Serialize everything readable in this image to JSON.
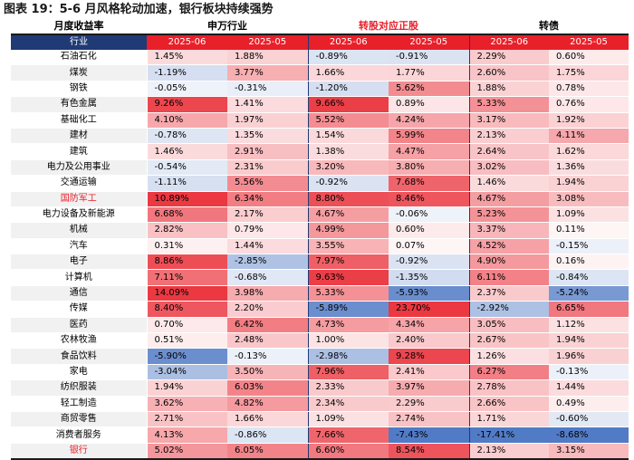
{
  "title": "图表 19：5-6 月风格轮动加速，银行板块持续强势",
  "header": {
    "corner_label": "月度收益率",
    "groups": [
      "申万行业",
      "转股对应正股",
      "转债"
    ],
    "sub_corner": "行业",
    "sub_labels": [
      "2025-06",
      "2025-05",
      "2025-06",
      "2025-05",
      "2025-06",
      "2025-05"
    ]
  },
  "rows": [
    {
      "name": "石油石化",
      "v": [
        "1.45%",
        "1.88%",
        "-0.89%",
        "-0.91%",
        "2.29%",
        "0.60%"
      ],
      "n": [
        1.45,
        1.88,
        -0.89,
        -0.91,
        2.29,
        0.6
      ],
      "hl": false
    },
    {
      "name": "煤炭",
      "v": [
        "-1.19%",
        "3.77%",
        "1.66%",
        "1.77%",
        "2.60%",
        "1.75%"
      ],
      "n": [
        -1.19,
        3.77,
        1.66,
        1.77,
        2.6,
        1.75
      ],
      "hl": false
    },
    {
      "name": "钢铁",
      "v": [
        "-0.05%",
        "-0.31%",
        "-1.20%",
        "5.62%",
        "1.88%",
        "0.78%"
      ],
      "n": [
        -0.05,
        -0.31,
        -1.2,
        5.62,
        1.88,
        0.78
      ],
      "hl": false
    },
    {
      "name": "有色金属",
      "v": [
        "9.26%",
        "1.41%",
        "9.66%",
        "0.89%",
        "5.33%",
        "0.76%"
      ],
      "n": [
        9.26,
        1.41,
        9.66,
        0.89,
        5.33,
        0.76
      ],
      "hl": false
    },
    {
      "name": "基础化工",
      "v": [
        "4.10%",
        "1.97%",
        "5.52%",
        "4.24%",
        "3.17%",
        "1.92%"
      ],
      "n": [
        4.1,
        1.97,
        5.52,
        4.24,
        3.17,
        1.92
      ],
      "hl": false
    },
    {
      "name": "建材",
      "v": [
        "-0.78%",
        "1.35%",
        "1.54%",
        "5.99%",
        "2.13%",
        "4.11%"
      ],
      "n": [
        -0.78,
        1.35,
        1.54,
        5.99,
        2.13,
        4.11
      ],
      "hl": false
    },
    {
      "name": "建筑",
      "v": [
        "1.46%",
        "2.91%",
        "1.38%",
        "4.47%",
        "2.64%",
        "1.62%"
      ],
      "n": [
        1.46,
        2.91,
        1.38,
        4.47,
        2.64,
        1.62
      ],
      "hl": false
    },
    {
      "name": "电力及公用事业",
      "v": [
        "-0.54%",
        "2.31%",
        "3.20%",
        "3.80%",
        "3.02%",
        "1.36%"
      ],
      "n": [
        -0.54,
        2.31,
        3.2,
        3.8,
        3.02,
        1.36
      ],
      "hl": false
    },
    {
      "name": "交通运输",
      "v": [
        "-1.11%",
        "5.56%",
        "-0.92%",
        "7.68%",
        "1.46%",
        "1.94%"
      ],
      "n": [
        -1.11,
        5.56,
        -0.92,
        7.68,
        1.46,
        1.94
      ],
      "hl": false
    },
    {
      "name": "国防军工",
      "v": [
        "10.89%",
        "6.34%",
        "8.80%",
        "8.46%",
        "4.67%",
        "3.08%"
      ],
      "n": [
        10.89,
        6.34,
        8.8,
        8.46,
        4.67,
        3.08
      ],
      "hl": true
    },
    {
      "name": "电力设备及新能源",
      "v": [
        "6.68%",
        "2.17%",
        "4.67%",
        "-0.06%",
        "5.23%",
        "1.09%"
      ],
      "n": [
        6.68,
        2.17,
        4.67,
        -0.06,
        5.23,
        1.09
      ],
      "hl": false
    },
    {
      "name": "机械",
      "v": [
        "2.82%",
        "0.79%",
        "4.99%",
        "0.60%",
        "3.37%",
        "0.11%"
      ],
      "n": [
        2.82,
        0.79,
        4.99,
        0.6,
        3.37,
        0.11
      ],
      "hl": false
    },
    {
      "name": "汽车",
      "v": [
        "0.31%",
        "1.44%",
        "3.55%",
        "0.07%",
        "4.52%",
        "-0.15%"
      ],
      "n": [
        0.31,
        1.44,
        3.55,
        0.07,
        4.52,
        -0.15
      ],
      "hl": false
    },
    {
      "name": "电子",
      "v": [
        "8.86%",
        "-2.85%",
        "7.97%",
        "-0.92%",
        "4.90%",
        "0.16%"
      ],
      "n": [
        8.86,
        -2.85,
        7.97,
        -0.92,
        4.9,
        0.16
      ],
      "hl": false
    },
    {
      "name": "计算机",
      "v": [
        "7.11%",
        "-0.68%",
        "9.63%",
        "-1.35%",
        "6.11%",
        "-0.84%"
      ],
      "n": [
        7.11,
        -0.68,
        9.63,
        -1.35,
        6.11,
        -0.84
      ],
      "hl": false
    },
    {
      "name": "通信",
      "v": [
        "14.09%",
        "3.98%",
        "5.33%",
        "-5.93%",
        "2.37%",
        "-5.24%"
      ],
      "n": [
        14.09,
        3.98,
        5.33,
        -5.93,
        2.37,
        -5.24
      ],
      "hl": false
    },
    {
      "name": "传媒",
      "v": [
        "8.40%",
        "2.20%",
        "-5.89%",
        "23.70%",
        "-2.92%",
        "6.65%"
      ],
      "n": [
        8.4,
        2.2,
        -5.89,
        23.7,
        -2.92,
        6.65
      ],
      "hl": false
    },
    {
      "name": "医药",
      "v": [
        "0.70%",
        "6.42%",
        "4.73%",
        "4.34%",
        "3.05%",
        "1.12%"
      ],
      "n": [
        0.7,
        6.42,
        4.73,
        4.34,
        3.05,
        1.12
      ],
      "hl": false
    },
    {
      "name": "农林牧渔",
      "v": [
        "0.51%",
        "2.48%",
        "1.00%",
        "2.40%",
        "2.67%",
        "1.94%"
      ],
      "n": [
        0.51,
        2.48,
        1.0,
        2.4,
        2.67,
        1.94
      ],
      "hl": false
    },
    {
      "name": "食品饮料",
      "v": [
        "-5.90%",
        "-0.13%",
        "-2.98%",
        "9.28%",
        "1.26%",
        "1.96%"
      ],
      "n": [
        -5.9,
        -0.13,
        -2.98,
        9.28,
        1.26,
        1.96
      ],
      "hl": false
    },
    {
      "name": "家电",
      "v": [
        "-3.04%",
        "3.50%",
        "7.96%",
        "2.41%",
        "6.27%",
        "-0.13%"
      ],
      "n": [
        -3.04,
        3.5,
        7.96,
        2.41,
        6.27,
        -0.13
      ],
      "hl": false
    },
    {
      "name": "纺织服装",
      "v": [
        "1.94%",
        "6.03%",
        "2.33%",
        "3.97%",
        "2.78%",
        "1.44%"
      ],
      "n": [
        1.94,
        6.03,
        2.33,
        3.97,
        2.78,
        1.44
      ],
      "hl": false
    },
    {
      "name": "轻工制造",
      "v": [
        "3.62%",
        "4.82%",
        "2.34%",
        "2.29%",
        "2.66%",
        "0.49%"
      ],
      "n": [
        3.62,
        4.82,
        2.34,
        2.29,
        2.66,
        0.49
      ],
      "hl": false
    },
    {
      "name": "商贸零售",
      "v": [
        "2.71%",
        "1.66%",
        "1.09%",
        "2.74%",
        "1.71%",
        "-0.60%"
      ],
      "n": [
        2.71,
        1.66,
        1.09,
        2.74,
        1.71,
        -0.6
      ],
      "hl": false
    },
    {
      "name": "消费者服务",
      "v": [
        "4.13%",
        "-0.86%",
        "7.66%",
        "-7.43%",
        "-17.41%",
        "-8.68%"
      ],
      "n": [
        4.13,
        -0.86,
        7.66,
        -7.43,
        -17.41,
        -8.68
      ],
      "hl": false
    },
    {
      "name": "银行",
      "v": [
        "5.02%",
        "6.05%",
        "6.60%",
        "8.54%",
        "2.13%",
        "3.15%"
      ],
      "n": [
        5.02,
        6.05,
        6.6,
        8.54,
        2.13,
        3.15
      ],
      "hl": true
    }
  ],
  "colors": {
    "positive": "#e8202a",
    "negative": "#1f4fa8",
    "header_blue": "#1f3a75"
  }
}
